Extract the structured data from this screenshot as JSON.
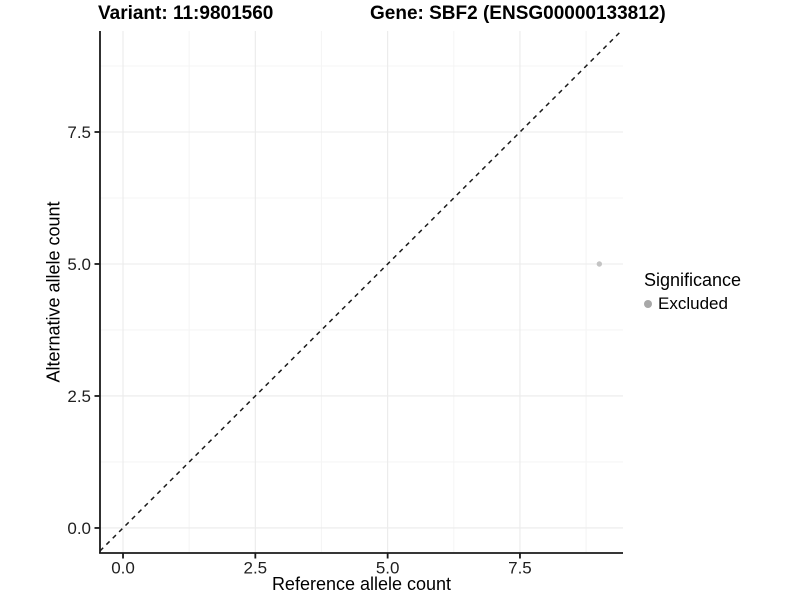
{
  "page": {
    "background": "#ffffff"
  },
  "colors": {
    "axis_line": "#1a1a1a",
    "tick_text": "#1f1f1f",
    "grid_major": "#ebebeb",
    "grid_minor": "#f5f5f5",
    "identity_line": "#1a1a1a",
    "point": "#c4c4c4",
    "legend_dot": "#a8a8a8",
    "title_text": "#000000"
  },
  "chart_data": {
    "type": "scatter",
    "titles": {
      "variant": "Variant: 11:9801560",
      "gene": "Gene: SBF2 (ENSG00000133812)"
    },
    "xlabel": "Reference allele count",
    "ylabel": "Alternative allele count",
    "x_ticks": [
      0,
      2.5,
      5,
      7.5
    ],
    "x_tick_labels": [
      "0.0",
      "2.5",
      "5.0",
      "7.5"
    ],
    "y_ticks": [
      0,
      2.5,
      5,
      7.5
    ],
    "y_tick_labels": [
      "0.0",
      "2.5",
      "5.0",
      "7.5"
    ],
    "x_minor": [
      1.25,
      3.75,
      6.25,
      8.75
    ],
    "y_minor": [
      1.25,
      3.75,
      6.25,
      8.75
    ],
    "xlim": [
      -0.435,
      9.447
    ],
    "ylim": [
      -0.474,
      9.413
    ],
    "grid": true,
    "points": [
      {
        "x": 9,
        "y": 5,
        "series": "Excluded"
      }
    ],
    "abline": {
      "slope": 1,
      "intercept": 0,
      "style": "dashed"
    },
    "legend": {
      "title": "Significance",
      "position": "right",
      "items": [
        {
          "label": "Excluded",
          "color": "#a8a8a8"
        }
      ]
    }
  }
}
